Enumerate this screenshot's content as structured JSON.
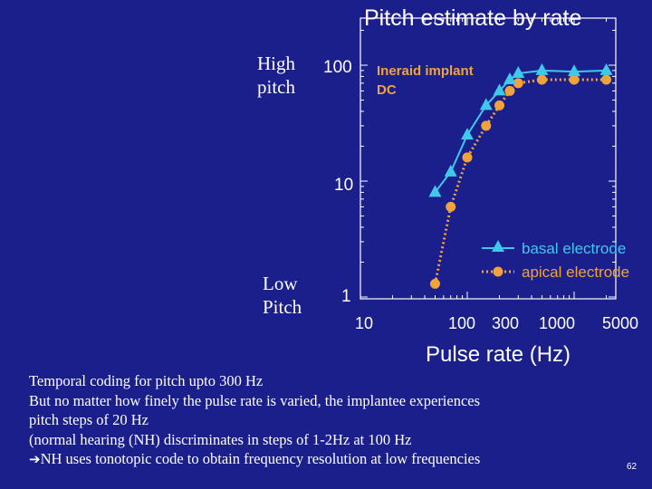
{
  "slide": {
    "title": "Pitch estimate by rate",
    "high_label": [
      "High",
      "pitch"
    ],
    "low_label": [
      "Low",
      "Pitch"
    ],
    "page_number": "62",
    "colors": {
      "background": "#1a1f8c",
      "basal": "#3fc8ea",
      "apical": "#f2a23a",
      "annotation": "#f2a23a",
      "text": "#ffffff"
    }
  },
  "chart_data": {
    "type": "line",
    "title": "Pitch estimate by rate",
    "xlabel": "Pulse rate (Hz)",
    "ylabel": "",
    "x_scale": "log",
    "y_scale": "log",
    "xlim": [
      10,
      5000
    ],
    "ylim": [
      1,
      200
    ],
    "x_tick_labels": [
      "10",
      "100",
      "300",
      "1000",
      "5000"
    ],
    "y_tick_labels": [
      "1",
      "10",
      "100"
    ],
    "annotation": [
      "Ineraid implant",
      "DC"
    ],
    "legend_position": "bottom-right",
    "series": [
      {
        "name": "basal electrode",
        "marker": "triangle",
        "x": [
          50,
          70,
          100,
          150,
          200,
          250,
          300,
          500,
          1000,
          2000
        ],
        "y": [
          8,
          12,
          25,
          45,
          60,
          75,
          85,
          90,
          88,
          90
        ]
      },
      {
        "name": "apical electrode",
        "marker": "circle",
        "dash": "dotted",
        "x": [
          50,
          70,
          100,
          150,
          200,
          250,
          300,
          500,
          1000,
          2000
        ],
        "y": [
          1.3,
          6,
          16,
          30,
          45,
          60,
          70,
          75,
          75,
          75
        ]
      }
    ]
  },
  "text_block": {
    "lines": [
      "Temporal coding for pitch upto 300 Hz",
      "But no matter how finely the pulse rate is varied, the implantee experiences",
      "pitch steps of 20 Hz",
      "(normal hearing (NH) discriminates in steps of 1-2Hz at 100 Hz",
      "NH uses tonotopic code to obtain frequency resolution at low frequencies"
    ],
    "arrow_icon": "➔"
  }
}
